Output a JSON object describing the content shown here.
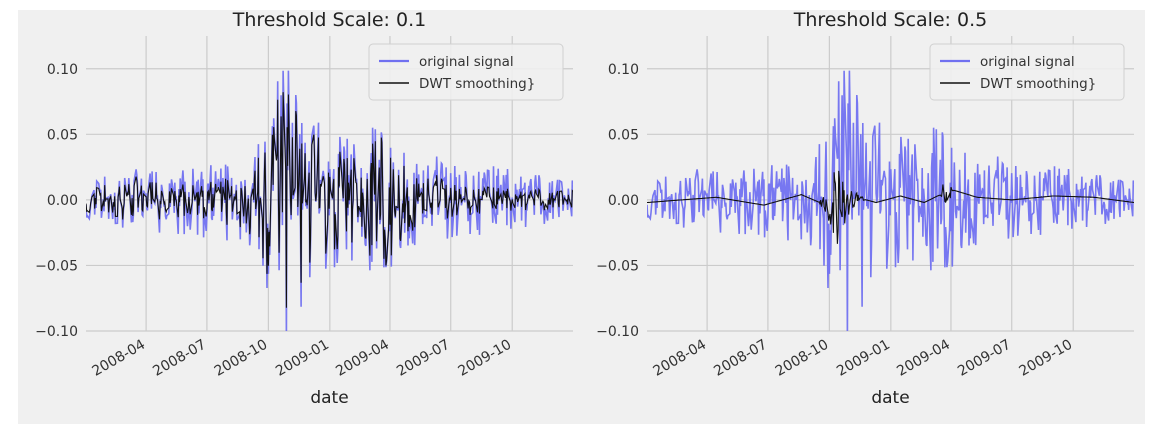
{
  "figure": {
    "background": "#f0f0f0",
    "panel_color": "#f0f0f0",
    "grid_color": "#cbcbcb"
  },
  "chart_data": [
    {
      "type": "line",
      "title": "Threshold Scale: 0.1",
      "xlabel": "date",
      "ylabel": "",
      "xlim": [
        "2008-01-02",
        "2009-12-31"
      ],
      "ylim": [
        -0.1,
        0.125
      ],
      "yticks": [
        -0.1,
        -0.05,
        0.0,
        0.05,
        0.1
      ],
      "ytick_labels": [
        "−0.10",
        "−0.05",
        "0.00",
        "0.05",
        "0.10"
      ],
      "xticks": [
        "2008-04-01",
        "2008-07-01",
        "2008-10-01",
        "2009-01-01",
        "2009-04-01",
        "2009-07-01",
        "2009-10-01"
      ],
      "xtick_labels": [
        "2008-04",
        "2008-07",
        "2008-10",
        "2009-01",
        "2009-04",
        "2009-07",
        "2009-10"
      ],
      "grid": true,
      "legend": "top-right",
      "threshold_scale": 0.1,
      "series": [
        {
          "name": "original signal",
          "color": "#7070f0",
          "kind": "daily-returns",
          "envelope": [
            [
              "2008-01-02",
              0.015
            ],
            [
              "2008-03-10",
              0.025
            ],
            [
              "2008-06-15",
              0.03
            ],
            [
              "2008-09-01",
              0.035
            ],
            [
              "2008-09-20",
              0.05
            ],
            [
              "2008-10-10",
              0.09
            ],
            [
              "2008-10-20",
              0.117
            ],
            [
              "2008-11-15",
              0.09
            ],
            [
              "2008-12-15",
              0.06
            ],
            [
              "2009-02-01",
              0.05
            ],
            [
              "2009-03-15",
              0.06
            ],
            [
              "2009-05-01",
              0.04
            ],
            [
              "2009-07-01",
              0.03
            ],
            [
              "2009-10-01",
              0.025
            ],
            [
              "2009-12-31",
              0.015
            ]
          ]
        },
        {
          "name": "DWT smoothing}",
          "color": "#111111",
          "kind": "dwt-smoothing",
          "retain": 0.85,
          "envelope": [
            [
              "2008-01-02",
              0.01
            ],
            [
              "2008-03-15",
              0.02
            ],
            [
              "2008-06-15",
              0.015
            ],
            [
              "2008-09-10",
              0.03
            ],
            [
              "2008-10-10",
              0.085
            ],
            [
              "2008-10-20",
              0.105
            ],
            [
              "2008-11-15",
              0.08
            ],
            [
              "2008-12-20",
              0.05
            ],
            [
              "2009-02-01",
              0.04
            ],
            [
              "2009-03-25",
              0.06
            ],
            [
              "2009-05-01",
              0.03
            ],
            [
              "2009-07-01",
              0.015
            ],
            [
              "2009-10-01",
              0.01
            ],
            [
              "2009-12-31",
              0.008
            ]
          ]
        }
      ]
    },
    {
      "type": "line",
      "title": "Threshold Scale: 0.5",
      "xlabel": "date",
      "ylabel": "",
      "xlim": [
        "2008-01-02",
        "2009-12-31"
      ],
      "ylim": [
        -0.1,
        0.125
      ],
      "yticks": [
        -0.1,
        -0.05,
        0.0,
        0.05,
        0.1
      ],
      "ytick_labels": [
        "−0.10",
        "−0.05",
        "0.00",
        "0.05",
        "0.10"
      ],
      "xticks": [
        "2008-04-01",
        "2008-07-01",
        "2008-10-01",
        "2009-01-01",
        "2009-04-01",
        "2009-07-01",
        "2009-10-01"
      ],
      "xtick_labels": [
        "2008-04",
        "2008-07",
        "2008-10",
        "2009-01",
        "2009-04",
        "2009-07",
        "2009-10"
      ],
      "grid": true,
      "legend": "top-right",
      "threshold_scale": 0.5,
      "series": [
        {
          "name": "original signal",
          "color": "#7070f0",
          "kind": "daily-returns",
          "envelope": [
            [
              "2008-01-02",
              0.015
            ],
            [
              "2008-03-10",
              0.025
            ],
            [
              "2008-06-15",
              0.03
            ],
            [
              "2008-09-01",
              0.035
            ],
            [
              "2008-09-20",
              0.05
            ],
            [
              "2008-10-10",
              0.09
            ],
            [
              "2008-10-20",
              0.117
            ],
            [
              "2008-11-15",
              0.09
            ],
            [
              "2008-12-15",
              0.06
            ],
            [
              "2009-02-01",
              0.05
            ],
            [
              "2009-03-15",
              0.06
            ],
            [
              "2009-05-01",
              0.04
            ],
            [
              "2009-07-01",
              0.03
            ],
            [
              "2009-10-01",
              0.025
            ],
            [
              "2009-12-31",
              0.015
            ]
          ]
        },
        {
          "name": "DWT smoothing}",
          "color": "#111111",
          "kind": "dwt-smoothing",
          "trend": [
            [
              "2008-01-02",
              -0.002
            ],
            [
              "2008-04-15",
              0.002
            ],
            [
              "2008-06-25",
              -0.004
            ],
            [
              "2008-08-20",
              0.004
            ],
            [
              "2008-10-05",
              -0.006
            ],
            [
              "2008-11-10",
              0.002
            ],
            [
              "2008-12-10",
              -0.002
            ],
            [
              "2009-01-15",
              0.003
            ],
            [
              "2009-02-20",
              -0.002
            ],
            [
              "2009-04-01",
              0.008
            ],
            [
              "2009-05-10",
              0.002
            ],
            [
              "2009-07-01",
              0.0
            ],
            [
              "2009-09-01",
              0.003
            ],
            [
              "2009-11-01",
              0.002
            ],
            [
              "2009-12-31",
              -0.002
            ]
          ],
          "residual_envelope": [
            [
              "2008-01-02",
              0.0
            ],
            [
              "2008-09-15",
              0.0
            ],
            [
              "2008-09-28",
              0.01
            ],
            [
              "2008-10-10",
              0.035
            ],
            [
              "2008-10-22",
              0.02
            ],
            [
              "2008-11-10",
              0.005
            ],
            [
              "2008-11-25",
              0.0
            ],
            [
              "2009-03-15",
              0.0
            ],
            [
              "2009-03-25",
              0.015
            ],
            [
              "2009-04-05",
              0.0
            ],
            [
              "2009-12-31",
              0.0
            ]
          ]
        }
      ]
    }
  ]
}
